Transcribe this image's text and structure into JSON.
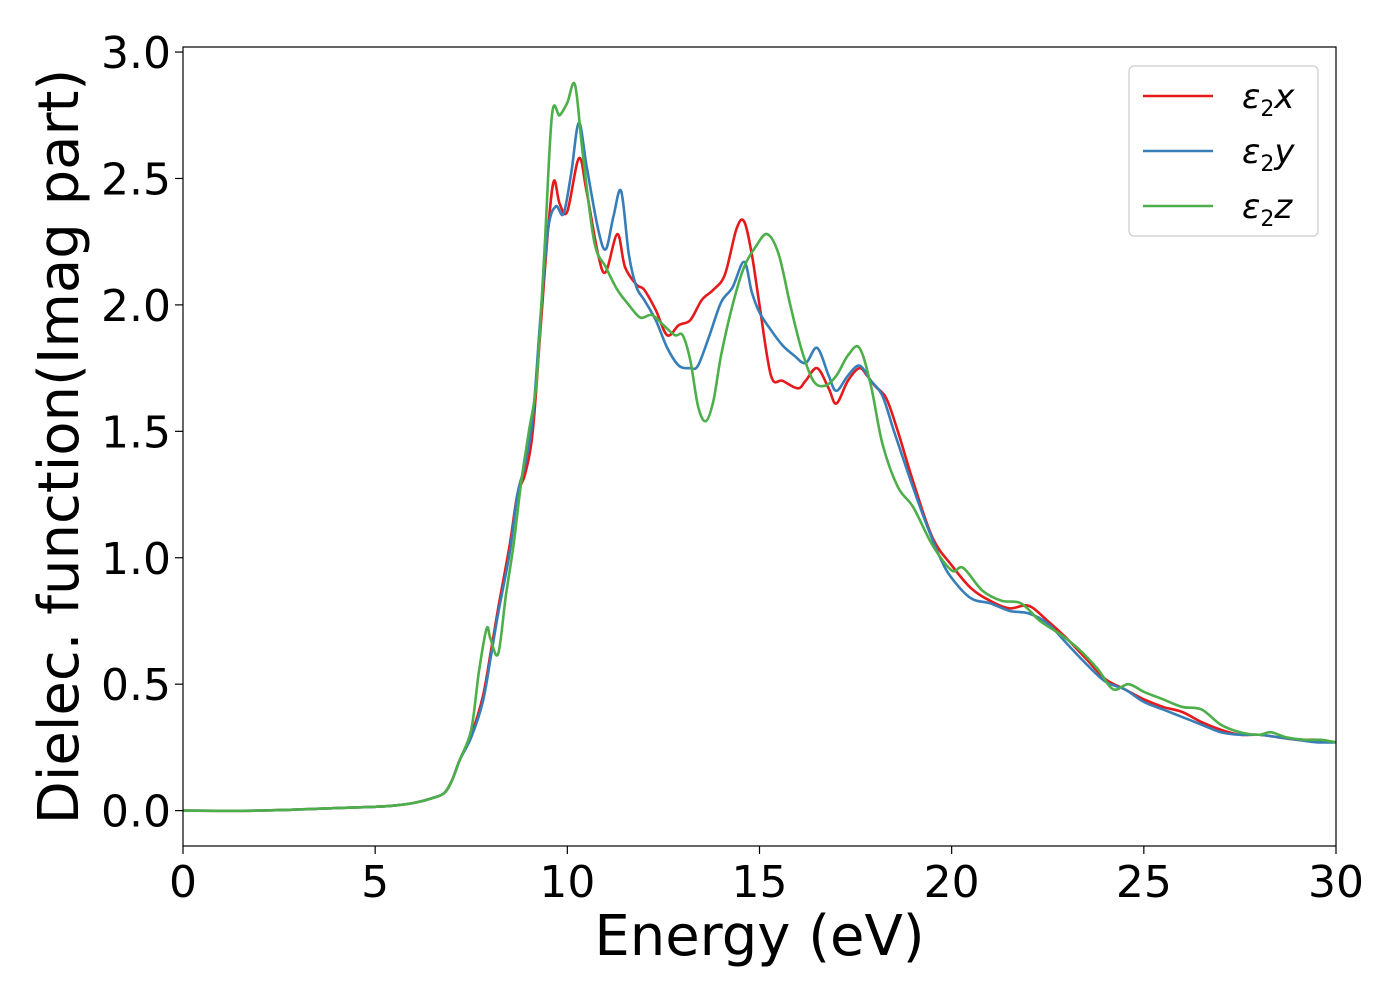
{
  "chart_data": {
    "type": "line",
    "xlabel": "Energy (eV)",
    "ylabel": "Dielec. function(Imag part)",
    "xlim": [
      0,
      30
    ],
    "ylim": [
      -0.14,
      3.02
    ],
    "xticks": [
      0,
      5,
      10,
      15,
      20,
      25,
      30
    ],
    "xtick_labels": [
      "0",
      "5",
      "10",
      "15",
      "20",
      "25",
      "30"
    ],
    "yticks": [
      0.0,
      0.5,
      1.0,
      1.5,
      2.0,
      2.5,
      3.0
    ],
    "ytick_labels": [
      "0.0",
      "0.5",
      "1.0",
      "1.5",
      "2.0",
      "2.5",
      "3.0"
    ],
    "grid": false,
    "legend_position": "top-right",
    "series": [
      {
        "name": "ε2x",
        "legend_main": "ε",
        "legend_sub": "2",
        "legend_var": "x",
        "color": "#e41a1c",
        "x": [
          0,
          2,
          4,
          5,
          5.5,
          6,
          6.5,
          6.8,
          7.0,
          7.2,
          7.5,
          7.8,
          8.0,
          8.2,
          8.5,
          8.7,
          8.9,
          9.1,
          9.3,
          9.5,
          9.65,
          9.8,
          10.0,
          10.3,
          10.5,
          10.8,
          11.0,
          11.3,
          11.5,
          11.8,
          12.0,
          12.3,
          12.6,
          12.9,
          13.2,
          13.5,
          13.8,
          14.1,
          14.4,
          14.6,
          14.8,
          15.0,
          15.3,
          15.6,
          16.0,
          16.2,
          16.5,
          16.8,
          17.0,
          17.3,
          17.6,
          17.8,
          18.0,
          18.3,
          18.6,
          19.0,
          19.5,
          20.0,
          20.5,
          21.0,
          21.5,
          22.0,
          22.5,
          23.0,
          23.5,
          24.0,
          24.5,
          25.0,
          25.5,
          26.0,
          26.5,
          27.0,
          27.5,
          28.0,
          28.5,
          29.0,
          29.5,
          30.0
        ],
        "y": [
          0.0,
          0.0,
          0.01,
          0.015,
          0.02,
          0.03,
          0.05,
          0.07,
          0.12,
          0.2,
          0.3,
          0.45,
          0.62,
          0.8,
          1.05,
          1.25,
          1.33,
          1.5,
          1.9,
          2.3,
          2.49,
          2.4,
          2.37,
          2.58,
          2.45,
          2.2,
          2.13,
          2.28,
          2.15,
          2.08,
          2.06,
          1.98,
          1.88,
          1.92,
          1.94,
          2.02,
          2.06,
          2.12,
          2.3,
          2.33,
          2.2,
          2.0,
          1.72,
          1.7,
          1.67,
          1.7,
          1.75,
          1.67,
          1.61,
          1.7,
          1.75,
          1.72,
          1.68,
          1.63,
          1.5,
          1.3,
          1.08,
          0.97,
          0.88,
          0.83,
          0.8,
          0.81,
          0.75,
          0.68,
          0.6,
          0.52,
          0.48,
          0.44,
          0.41,
          0.39,
          0.35,
          0.32,
          0.3,
          0.3,
          0.29,
          0.28,
          0.28,
          0.27
        ]
      },
      {
        "name": "ε2y",
        "legend_main": "ε",
        "legend_sub": "2",
        "legend_var": "y",
        "color": "#377eb8",
        "x": [
          0,
          2,
          4,
          5,
          5.5,
          6,
          6.5,
          6.8,
          7.0,
          7.2,
          7.5,
          7.8,
          8.0,
          8.2,
          8.5,
          8.7,
          8.9,
          9.1,
          9.3,
          9.5,
          9.7,
          9.9,
          10.1,
          10.3,
          10.5,
          10.8,
          11.0,
          11.2,
          11.4,
          11.6,
          11.8,
          12.0,
          12.3,
          12.6,
          12.9,
          13.2,
          13.4,
          13.7,
          14.0,
          14.3,
          14.6,
          14.8,
          15.0,
          15.3,
          15.6,
          15.9,
          16.2,
          16.5,
          16.8,
          17.0,
          17.3,
          17.6,
          17.9,
          18.2,
          18.5,
          18.9,
          19.3,
          19.7,
          20.0,
          20.5,
          21.0,
          21.5,
          22.0,
          22.5,
          23.0,
          23.5,
          24.0,
          24.5,
          25.0,
          25.5,
          26.0,
          26.5,
          27.0,
          27.5,
          28.0,
          28.5,
          29.0,
          29.5,
          30.0
        ],
        "y": [
          0.0,
          0.0,
          0.01,
          0.015,
          0.02,
          0.03,
          0.05,
          0.07,
          0.12,
          0.2,
          0.29,
          0.43,
          0.6,
          0.78,
          1.02,
          1.25,
          1.37,
          1.55,
          1.95,
          2.3,
          2.39,
          2.36,
          2.52,
          2.72,
          2.55,
          2.3,
          2.22,
          2.35,
          2.45,
          2.2,
          2.07,
          2.02,
          1.94,
          1.83,
          1.76,
          1.75,
          1.76,
          1.88,
          2.01,
          2.07,
          2.17,
          2.05,
          1.97,
          1.9,
          1.84,
          1.8,
          1.77,
          1.83,
          1.72,
          1.66,
          1.72,
          1.76,
          1.7,
          1.64,
          1.5,
          1.32,
          1.15,
          1.0,
          0.92,
          0.84,
          0.82,
          0.79,
          0.78,
          0.74,
          0.66,
          0.58,
          0.51,
          0.48,
          0.43,
          0.4,
          0.37,
          0.34,
          0.31,
          0.3,
          0.3,
          0.29,
          0.28,
          0.27,
          0.27
        ]
      },
      {
        "name": "ε2z",
        "legend_main": "ε",
        "legend_sub": "2",
        "legend_var": "z",
        "color": "#4daf4a",
        "x": [
          0,
          2,
          4,
          5,
          5.5,
          6,
          6.5,
          6.8,
          7.0,
          7.2,
          7.5,
          7.7,
          7.9,
          8.0,
          8.2,
          8.4,
          8.6,
          8.8,
          9.0,
          9.2,
          9.4,
          9.6,
          9.8,
          10.0,
          10.2,
          10.4,
          10.7,
          11.0,
          11.3,
          11.6,
          11.9,
          12.2,
          12.5,
          12.8,
          13.0,
          13.2,
          13.4,
          13.6,
          13.8,
          14.0,
          14.3,
          14.6,
          14.9,
          15.2,
          15.5,
          15.8,
          16.1,
          16.4,
          16.7,
          17.0,
          17.3,
          17.6,
          17.9,
          18.2,
          18.6,
          19.0,
          19.5,
          20.0,
          20.3,
          20.8,
          21.3,
          21.8,
          22.3,
          22.8,
          23.3,
          23.8,
          24.2,
          24.6,
          25.0,
          25.5,
          26.0,
          26.5,
          27.0,
          27.5,
          28.0,
          28.3,
          28.7,
          29.2,
          29.6,
          30.0
        ],
        "y": [
          0.0,
          0.0,
          0.01,
          0.015,
          0.02,
          0.03,
          0.05,
          0.07,
          0.12,
          0.2,
          0.32,
          0.55,
          0.72,
          0.68,
          0.62,
          0.85,
          1.05,
          1.3,
          1.5,
          1.7,
          2.2,
          2.75,
          2.75,
          2.8,
          2.87,
          2.6,
          2.25,
          2.15,
          2.06,
          2.0,
          1.95,
          1.96,
          1.92,
          1.88,
          1.88,
          1.78,
          1.6,
          1.54,
          1.62,
          1.8,
          2.0,
          2.15,
          2.23,
          2.28,
          2.2,
          2.0,
          1.82,
          1.7,
          1.68,
          1.72,
          1.8,
          1.83,
          1.68,
          1.45,
          1.28,
          1.2,
          1.05,
          0.95,
          0.96,
          0.87,
          0.83,
          0.82,
          0.75,
          0.7,
          0.64,
          0.56,
          0.48,
          0.5,
          0.47,
          0.44,
          0.41,
          0.4,
          0.34,
          0.31,
          0.3,
          0.31,
          0.29,
          0.28,
          0.28,
          0.27
        ]
      }
    ]
  }
}
